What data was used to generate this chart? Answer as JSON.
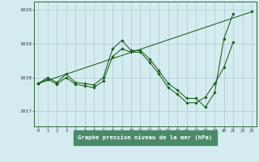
{
  "title": "Graphe pression niveau de la mer (hPa)",
  "bg_color": "#d4ecf0",
  "plot_bg_color": "#d4ecf0",
  "bottom_bar_color": "#5a9a7a",
  "grid_color": "#a8ccd0",
  "line_color": "#1a5c1a",
  "ylim_bottom": 1016.55,
  "ylim_top": 1020.25,
  "yticks": [
    1017,
    1018,
    1019,
    1020
  ],
  "xticks": [
    0,
    1,
    2,
    3,
    4,
    5,
    6,
    7,
    8,
    9,
    10,
    11,
    12,
    13,
    14,
    15,
    16,
    17,
    18,
    19,
    20,
    21,
    22,
    23
  ],
  "series": [
    {
      "x": [
        0,
        1,
        2,
        3,
        4,
        5,
        6,
        7,
        8,
        9,
        10,
        11,
        12,
        13,
        14,
        15,
        16,
        17,
        18,
        19,
        20,
        21,
        22,
        23
      ],
      "y": [
        1017.82,
        1018.0,
        1017.85,
        1018.1,
        1017.85,
        1017.82,
        1017.78,
        1018.0,
        1018.85,
        1019.1,
        1018.8,
        1018.8,
        1018.55,
        1018.2,
        1017.82,
        1017.62,
        1017.38,
        1017.38,
        1017.12,
        1017.55,
        1019.15,
        1019.9,
        null,
        null
      ]
    },
    {
      "x": [
        0,
        1,
        2,
        3,
        4,
        5,
        6,
        7,
        8,
        9,
        10,
        11,
        12,
        13,
        14,
        15,
        16,
        17,
        18,
        19,
        20,
        21,
        22,
        23
      ],
      "y": [
        1017.82,
        1017.95,
        1017.8,
        1018.0,
        1017.8,
        1017.75,
        1017.7,
        1017.9,
        1018.62,
        1018.85,
        1018.75,
        1018.75,
        1018.45,
        1018.1,
        1017.7,
        1017.5,
        1017.25,
        1017.25,
        1017.42,
        1017.82,
        1018.3,
        1019.05,
        null,
        null
      ]
    },
    {
      "x": [
        0,
        23
      ],
      "y": [
        1017.82,
        1019.95
      ]
    }
  ]
}
